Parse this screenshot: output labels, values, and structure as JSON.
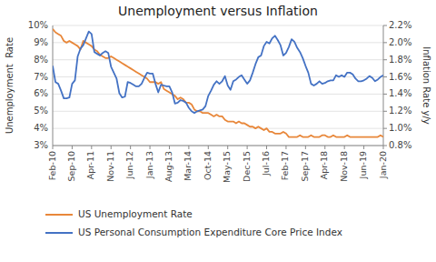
{
  "chart_data": {
    "type": "line",
    "title": "Unemployment versus Inflation",
    "y_label": "Unemployment  Rate",
    "y2_label": "Inflation Rate y/y",
    "categories": [
      "Feb-10",
      null,
      null,
      null,
      null,
      null,
      null,
      "Sep-10",
      null,
      null,
      null,
      null,
      null,
      null,
      "Apr-11",
      null,
      null,
      null,
      null,
      null,
      null,
      "Nov-11",
      null,
      null,
      null,
      null,
      null,
      null,
      "Jun-12",
      null,
      null,
      null,
      null,
      null,
      null,
      "Jan-13",
      null,
      null,
      null,
      null,
      null,
      null,
      "Aug-13",
      null,
      null,
      null,
      null,
      null,
      null,
      "Mar-14",
      null,
      null,
      null,
      null,
      null,
      null,
      "Oct-14",
      null,
      null,
      null,
      null,
      null,
      null,
      "May-15",
      null,
      null,
      null,
      null,
      null,
      null,
      "Dec-15",
      null,
      null,
      null,
      null,
      null,
      null,
      "Jul-16",
      null,
      null,
      null,
      null,
      null,
      null,
      "Feb-17",
      null,
      null,
      null,
      null,
      null,
      null,
      "Sep-17",
      null,
      null,
      null,
      null,
      null,
      null,
      "Apr-18",
      null,
      null,
      null,
      null,
      null,
      null,
      "Nov-18",
      null,
      null,
      null,
      null,
      null,
      null,
      "Jun-19",
      null,
      null,
      null,
      null,
      null,
      null,
      "Jan-20"
    ],
    "series": [
      {
        "name": "US Unemployment Rate",
        "color": "#E8873A",
        "axis": "y",
        "values": [
          9.8,
          9.6,
          9.5,
          9.4,
          9.1,
          9.0,
          9.1,
          9.0,
          8.9,
          8.8,
          8.6,
          9.1,
          9.0,
          8.9,
          8.8,
          8.6,
          8.5,
          8.3,
          8.2,
          8.1,
          8.1,
          8.2,
          8.1,
          8.0,
          7.9,
          7.8,
          7.7,
          7.6,
          7.5,
          7.4,
          7.3,
          7.2,
          7.1,
          7.0,
          6.9,
          6.7,
          6.7,
          6.7,
          6.6,
          6.7,
          6.3,
          6.2,
          6.1,
          6.0,
          5.9,
          5.7,
          5.8,
          5.7,
          5.5,
          5.5,
          5.4,
          5.1,
          5.0,
          5.0,
          4.9,
          4.9,
          4.9,
          4.8,
          4.7,
          4.8,
          4.7,
          4.7,
          4.5,
          4.4,
          4.4,
          4.4,
          4.3,
          4.4,
          4.3,
          4.3,
          4.2,
          4.1,
          4.1,
          4.0,
          4.1,
          4.0,
          3.9,
          4.0,
          3.8,
          3.8,
          3.7,
          3.7,
          3.7,
          3.8,
          3.7,
          3.5,
          3.5,
          3.5,
          3.5,
          3.6,
          3.5,
          3.5,
          3.5,
          3.6,
          3.5,
          3.5,
          3.5,
          3.6,
          3.6,
          3.5,
          3.5,
          3.6,
          3.5,
          3.5,
          3.5,
          3.5,
          3.6,
          3.5,
          3.5,
          3.5,
          3.5,
          3.5,
          3.5,
          3.5,
          3.5,
          3.5,
          3.5,
          3.5,
          3.6,
          3.5
        ]
      },
      {
        "name": "US Personal Consumption Expenditure Core Price Index",
        "color": "#4472C4",
        "axis": "y2",
        "values": [
          1.73,
          1.54,
          1.52,
          1.44,
          1.35,
          1.35,
          1.36,
          1.52,
          1.56,
          1.84,
          1.93,
          1.97,
          2.05,
          2.13,
          2.1,
          1.89,
          1.87,
          1.85,
          1.88,
          1.9,
          1.88,
          1.72,
          1.65,
          1.58,
          1.41,
          1.36,
          1.37,
          1.54,
          1.53,
          1.51,
          1.49,
          1.49,
          1.52,
          1.59,
          1.65,
          1.64,
          1.64,
          1.52,
          1.42,
          1.51,
          1.5,
          1.49,
          1.49,
          1.42,
          1.29,
          1.3,
          1.33,
          1.32,
          1.3,
          1.24,
          1.2,
          1.18,
          1.2,
          1.21,
          1.22,
          1.26,
          1.38,
          1.44,
          1.51,
          1.55,
          1.52,
          1.55,
          1.61,
          1.5,
          1.45,
          1.55,
          1.57,
          1.6,
          1.62,
          1.57,
          1.52,
          1.56,
          1.65,
          1.75,
          1.83,
          1.85,
          1.96,
          2.01,
          1.99,
          2.05,
          2.08,
          2.03,
          1.97,
          1.85,
          1.88,
          1.95,
          2.04,
          2.01,
          1.94,
          1.89,
          1.82,
          1.73,
          1.65,
          1.52,
          1.5,
          1.52,
          1.55,
          1.52,
          1.53,
          1.55,
          1.56,
          1.56,
          1.62,
          1.6,
          1.62,
          1.6,
          1.65,
          1.65,
          1.63,
          1.58,
          1.55,
          1.55,
          1.56,
          1.58,
          1.61,
          1.59,
          1.55,
          1.57,
          1.6,
          1.62
        ]
      }
    ],
    "ylim": [
      3,
      10
    ],
    "yticks": [
      {
        "value": 3,
        "label": "3%"
      },
      {
        "value": 4,
        "label": "4%"
      },
      {
        "value": 5,
        "label": "5%"
      },
      {
        "value": 6,
        "label": "6%"
      },
      {
        "value": 7,
        "label": "7%"
      },
      {
        "value": 8,
        "label": "8%"
      },
      {
        "value": 9,
        "label": "9%"
      },
      {
        "value": 10,
        "label": "10%"
      }
    ],
    "y2lim": [
      0.8,
      2.2
    ],
    "y2ticks": [
      {
        "value": 0.8,
        "label": "0.8%"
      },
      {
        "value": 1.0,
        "label": "1.0%"
      },
      {
        "value": 1.2,
        "label": "1.2%"
      },
      {
        "value": 1.4,
        "label": "1.4%"
      },
      {
        "value": 1.6,
        "label": "1.6%"
      },
      {
        "value": 1.8,
        "label": "1.8%"
      },
      {
        "value": 2.0,
        "label": "2.0%"
      },
      {
        "value": 2.2,
        "label": "2.2%"
      }
    ],
    "grid": true
  }
}
